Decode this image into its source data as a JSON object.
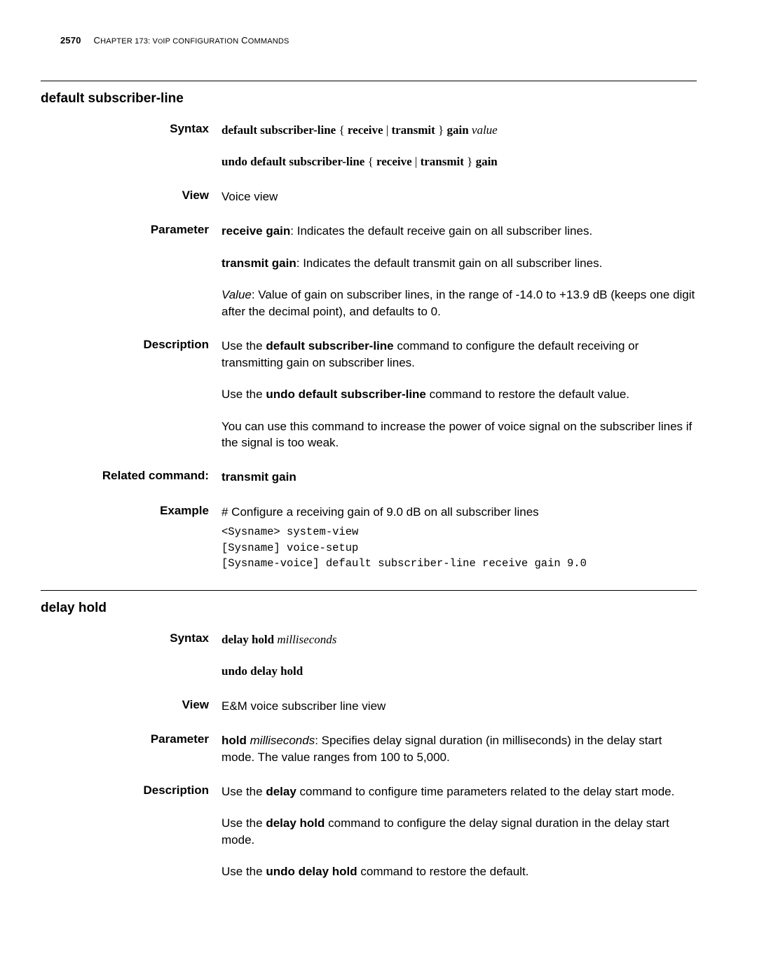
{
  "page": {
    "number": "2570",
    "chapter_prefix": "C",
    "chapter_rest": "hapter 173: V",
    "chapter_mid": "o",
    "chapter_mid2": "IP C",
    "chapter_tail": "onfiguration",
    "chapter_tail2": " C",
    "chapter_tail3": "ommands"
  },
  "sec1": {
    "title": "default subscriber-line",
    "syntax_label": "Syntax",
    "syntax1_a": "default subscriber-line",
    "syntax1_b": " { ",
    "syntax1_c": "receive",
    "syntax1_d": " | ",
    "syntax1_e": "transmit",
    "syntax1_f": " } ",
    "syntax1_g": "gain",
    "syntax1_h": " ",
    "syntax1_i": "value",
    "syntax2_a": "undo default subscriber-line",
    "syntax2_b": " { ",
    "syntax2_c": "receive",
    "syntax2_d": " | ",
    "syntax2_e": "transmit",
    "syntax2_f": " } ",
    "syntax2_g": "gain",
    "view_label": "View",
    "view_text": "Voice view",
    "param_label": "Parameter",
    "param1_a": "receive gain",
    "param1_b": ": Indicates the default receive gain on all subscriber lines.",
    "param2_a": "transmit gain",
    "param2_b": ": Indicates the default transmit gain on all subscriber lines.",
    "param3_a": "Value",
    "param3_b": ": Value of gain on subscriber lines, in the range of -14.0 to +13.9 dB (keeps one digit after the decimal point), and defaults to 0.",
    "desc_label": "Description",
    "desc1_a": "Use the ",
    "desc1_b": "default subscriber-line",
    "desc1_c": " command to configure the default receiving or transmitting gain on subscriber lines.",
    "desc2_a": "Use the ",
    "desc2_b": "undo default subscriber-line",
    "desc2_c": " command to restore the default value.",
    "desc3": "You can use this command to increase the power of voice signal on the subscriber lines if the signal is too weak.",
    "rel_label": "Related command:",
    "rel_text": "transmit gain",
    "ex_label": "Example",
    "ex_text": "# Configure a receiving gain of 9.0 dB on all subscriber lines",
    "ex_code": "<Sysname> system-view\n[Sysname] voice-setup\n[Sysname-voice] default subscriber-line receive gain 9.0"
  },
  "sec2": {
    "title": "delay hold",
    "syntax_label": "Syntax",
    "s1_a": "delay hold",
    "s1_b": " ",
    "s1_c": "milliseconds",
    "s2": "undo delay hold",
    "view_label": "View",
    "view_text": "E&M voice subscriber line view",
    "param_label": "Parameter",
    "p1_a": "hold",
    "p1_b": " ",
    "p1_c": "milliseconds",
    "p1_d": ": Specifies delay signal duration (in milliseconds) in the delay start mode. The value ranges from 100 to 5,000.",
    "desc_label": "Description",
    "d1_a": "Use the ",
    "d1_b": "delay",
    "d1_c": " command to configure time parameters related to the delay start mode.",
    "d2_a": "Use the ",
    "d2_b": "delay hold",
    "d2_c": " command to configure the delay signal duration in the delay start mode.",
    "d3_a": "Use the ",
    "d3_b": "undo delay hold",
    "d3_c": " command to restore the default."
  }
}
